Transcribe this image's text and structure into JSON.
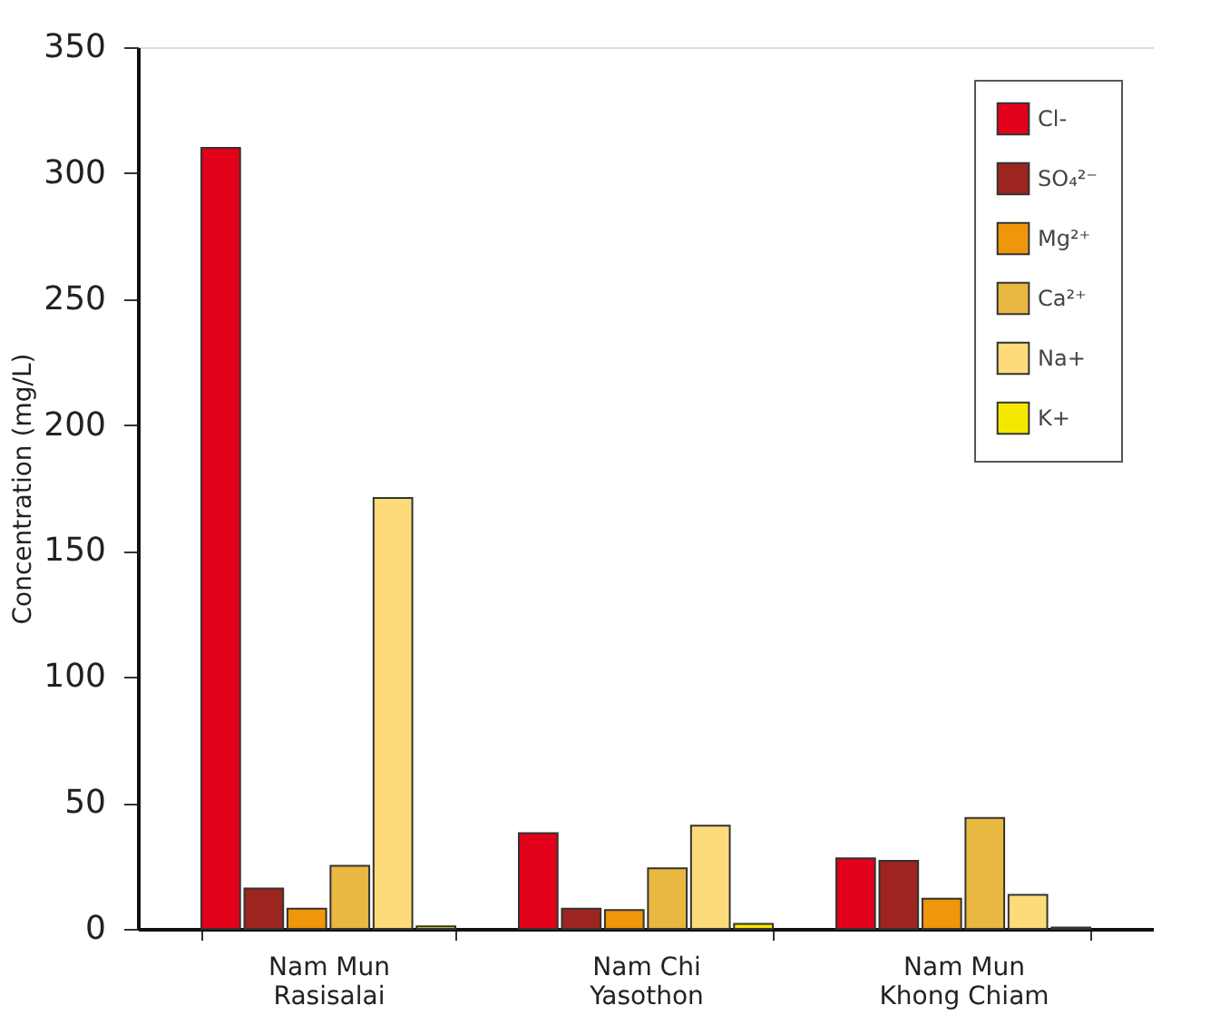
{
  "chart_data": {
    "type": "bar",
    "ylabel": "Concentration (mg/L)",
    "categories": [
      "Nam Mun\nRasisalai",
      "Nam Chi\nYasothon",
      "Nam Mun\nKhong Chiam"
    ],
    "series": [
      {
        "name": "Cl-",
        "color": "#e2001a",
        "values": [
          310,
          38,
          28
        ]
      },
      {
        "name": "SO₄²⁻",
        "color": "#9e2420",
        "values": [
          16,
          8,
          27
        ]
      },
      {
        "name": "Mg²⁺",
        "color": "#f0960a",
        "values": [
          8,
          7.5,
          12
        ]
      },
      {
        "name": "Ca²⁺",
        "color": "#e8b840",
        "values": [
          25,
          24,
          44
        ]
      },
      {
        "name": "Na+",
        "color": "#fddb7a",
        "values": [
          171,
          41,
          13.5
        ]
      },
      {
        "name": "K+",
        "color": "#f5e800",
        "values": [
          1,
          2,
          0.5
        ]
      }
    ],
    "ylim": [
      0,
      350
    ],
    "yticks": [
      0,
      50,
      100,
      150,
      200,
      250,
      300,
      350
    ],
    "grid": false,
    "legend": "top right"
  }
}
